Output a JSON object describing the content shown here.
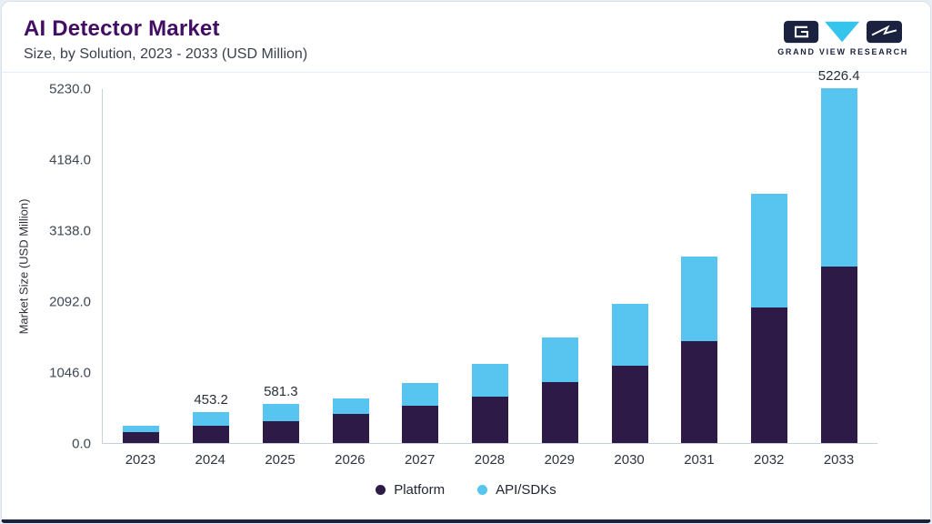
{
  "header": {
    "title": "AI Detector Market",
    "subtitle": "Size, by Solution, 2023 - 2033 (USD Million)"
  },
  "logo": {
    "text": "GRAND VIEW RESEARCH"
  },
  "colors": {
    "platform": "#2d1a47",
    "api_sdks": "#57c5f0",
    "title_purple": "#430d63",
    "bottom_border_navy": "#1b2240"
  },
  "chart_data": {
    "type": "bar",
    "stacked": true,
    "title": "AI Detector Market Size, by Solution, 2023 - 2033 (USD Million)",
    "ylabel": "Market Size (USD Million)",
    "ylim": [
      0,
      5230
    ],
    "grid": false,
    "legend_position": "bottom",
    "yticks": [
      0,
      1046,
      2092,
      3138,
      4184,
      5230
    ],
    "ytick_labels": [
      "0.0",
      "1046.0",
      "2092.0",
      "3138.0",
      "4184.0",
      "5230.0"
    ],
    "categories": [
      "2023",
      "2024",
      "2025",
      "2026",
      "2027",
      "2028",
      "2029",
      "2030",
      "2031",
      "2032",
      "2033"
    ],
    "series": [
      {
        "name": "Platform",
        "color": "#2d1a47",
        "values": [
          165,
          255,
          320,
          435,
          545,
          690,
          905,
          1145,
          1505,
          2000,
          2600
        ]
      },
      {
        "name": "API/SDKs",
        "color": "#57c5f0",
        "values": [
          85,
          198.2,
          261.3,
          225,
          335,
          480,
          645,
          905,
          1245,
          1680,
          2626.4
        ]
      }
    ],
    "total_labels": [
      "",
      "453.2",
      "581.3",
      "",
      "",
      "",
      "",
      "",
      "",
      "",
      "5226.4"
    ]
  }
}
